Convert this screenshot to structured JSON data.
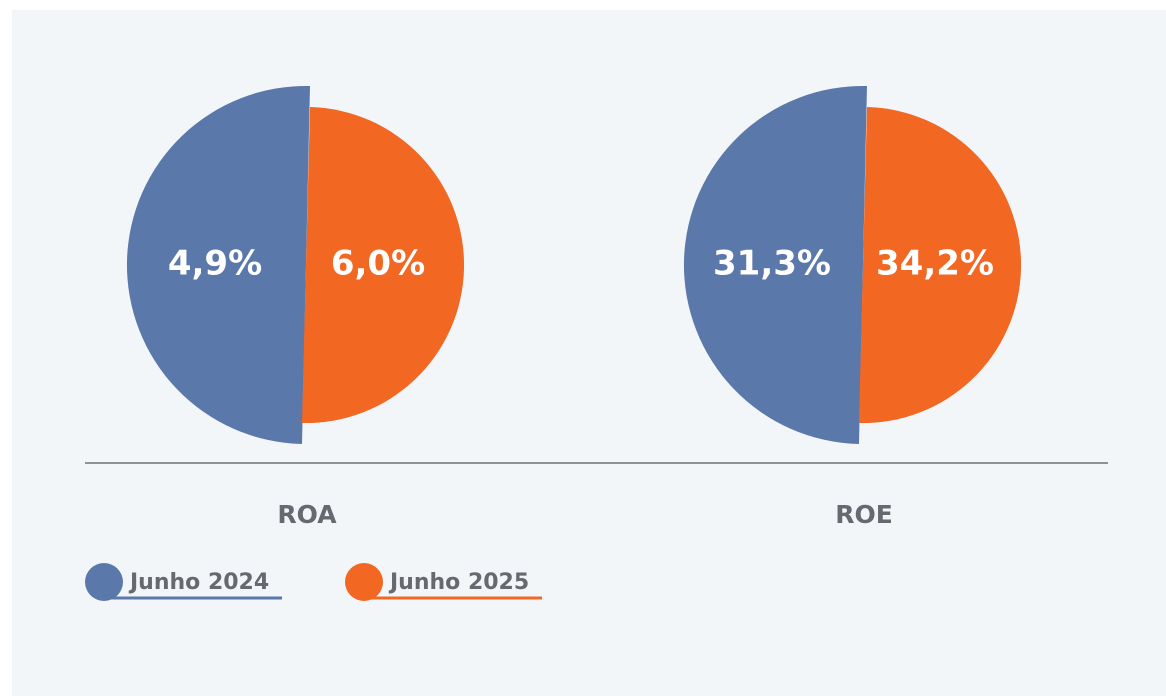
{
  "chart_data": {
    "type": "pie",
    "categories": [
      "ROA",
      "ROE"
    ],
    "series": [
      {
        "name": "Junho 2024",
        "color": "#5b78aa",
        "values": [
          4.9,
          31.3
        ],
        "value_labels": [
          "4,9%",
          "31,3%"
        ]
      },
      {
        "name": "Junho 2025",
        "color": "#f26722",
        "values": [
          6.0,
          34.2
        ],
        "value_labels": [
          "6,0%",
          "34,2%"
        ]
      }
    ]
  }
}
